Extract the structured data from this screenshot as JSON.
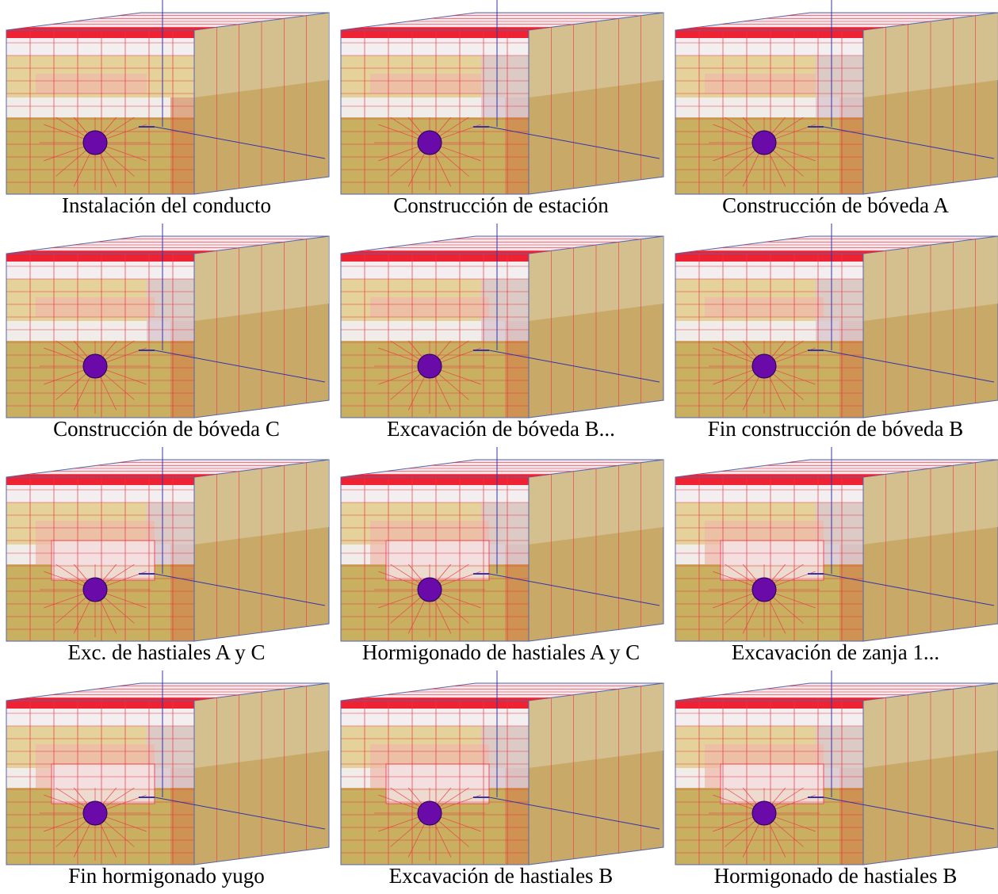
{
  "panels": [
    {
      "caption": "Instalación del conducto"
    },
    {
      "caption": "Construcción de estación"
    },
    {
      "caption": "Construcción de bóveda A"
    },
    {
      "caption": "Construcción de bóveda C"
    },
    {
      "caption": "Excavación de bóveda B..."
    },
    {
      "caption": "Fin construcción de bóveda B"
    },
    {
      "caption": "Exc. de hastiales A y C"
    },
    {
      "caption": "Hormigonado de hastiales A y C"
    },
    {
      "caption": "Excavación de zanja 1..."
    },
    {
      "caption": "Fin hormigonado yugo"
    },
    {
      "caption": "Excavación de hastiales B"
    },
    {
      "caption": "Hormigonado de hastiales B"
    }
  ]
}
